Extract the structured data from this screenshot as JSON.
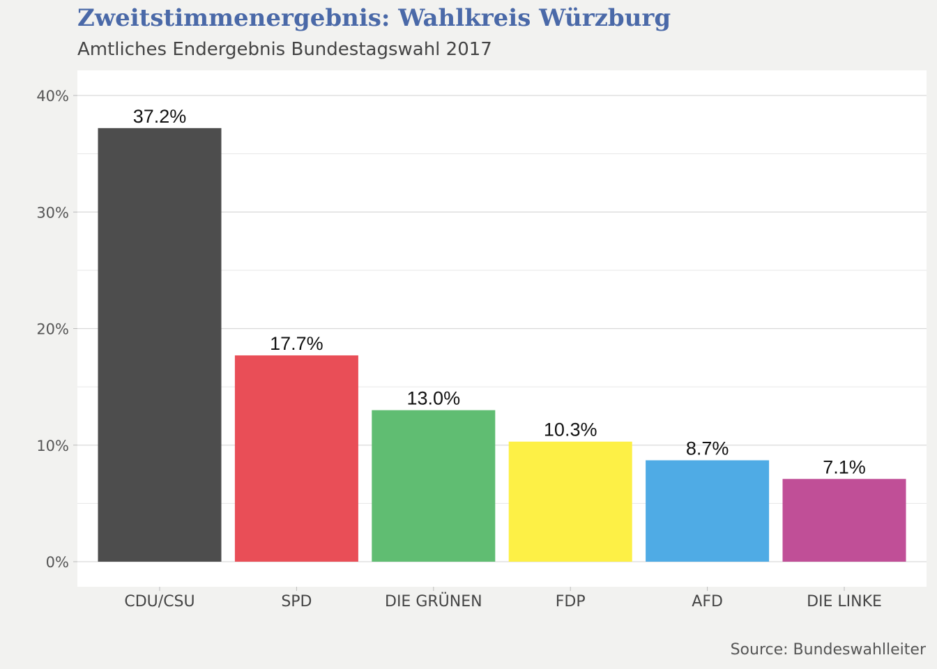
{
  "chart_data": {
    "type": "bar",
    "title": "Zweitstimmenergebnis: Wahlkreis Würzburg",
    "subtitle": "Amtliches Endergebnis Bundestagswahl 2017",
    "source": "Source: Bundeswahlleiter",
    "xlabel": "",
    "ylabel": "",
    "ylim": [
      0,
      40
    ],
    "yticks": [
      0,
      10,
      20,
      30,
      40
    ],
    "ytick_labels": [
      "0%",
      "10%",
      "20%",
      "30%",
      "40%"
    ],
    "grid": true,
    "categories": [
      "CDU/CSU",
      "SPD",
      "DIE GRÜNEN",
      "FDP",
      "AFD",
      "DIE LINKE"
    ],
    "values": [
      37.2,
      17.7,
      13.0,
      10.3,
      8.7,
      7.1
    ],
    "value_labels": [
      "37.2%",
      "17.7%",
      "13.0%",
      "10.3%",
      "8.7%",
      "7.1%"
    ],
    "colors": [
      "#4d4d4d",
      "#e94e57",
      "#60bd72",
      "#fdf046",
      "#4fabe5",
      "#c04f97"
    ]
  }
}
